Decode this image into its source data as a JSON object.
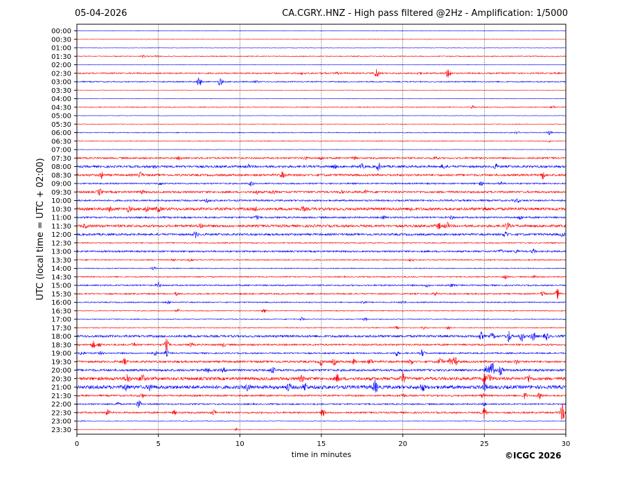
{
  "header": {
    "date": "05-04-2026",
    "title": "CA.CGRY..HNZ - High pass filtered @2Hz - Amplification: 1/5000"
  },
  "footer": {
    "copyright": "©ICGC 2026"
  },
  "colors": {
    "red": "#ff0000",
    "blue": "#0000ff",
    "grid": "#000000",
    "axis": "#000000"
  },
  "chart_data": {
    "type": "line",
    "title": "CA.CGRY..HNZ - High pass filtered @2Hz - Amplification: 1/5000",
    "xlabel": "time in minutes",
    "ylabel": "UTC (local time = UTC + 02:00)",
    "xlim": [
      0,
      30
    ],
    "xticks": [
      "0",
      "5",
      "10",
      "15",
      "20",
      "25",
      "30"
    ],
    "xgrid": [
      5,
      10,
      15,
      20,
      25
    ],
    "grid": "vertical dotted",
    "row_labels": [
      "00:00",
      "00:30",
      "01:00",
      "01:30",
      "02:00",
      "02:30",
      "03:00",
      "03:30",
      "04:00",
      "04:30",
      "05:00",
      "05:30",
      "06:00",
      "06:30",
      "07:00",
      "07:30",
      "08:00",
      "08:30",
      "09:00",
      "09:30",
      "10:00",
      "10:30",
      "11:00",
      "11:30",
      "12:00",
      "12:30",
      "13:00",
      "13:30",
      "14:00",
      "14:30",
      "15:00",
      "15:30",
      "16:00",
      "16:30",
      "17:00",
      "17:30",
      "18:00",
      "18:30",
      "19:00",
      "19:30",
      "20:00",
      "20:30",
      "21:00",
      "21:30",
      "22:00",
      "22:30",
      "23:00",
      "23:30"
    ],
    "row_colors": [
      "blue",
      "red"
    ],
    "noise_amplitude": [
      0.3,
      0.3,
      0.3,
      0.6,
      0.3,
      1.0,
      0.8,
      0.3,
      0.3,
      0.6,
      0.3,
      0.4,
      0.6,
      0.5,
      0.3,
      1.2,
      1.6,
      1.5,
      1.0,
      1.4,
      1.2,
      2.0,
      1.2,
      1.8,
      1.5,
      0.8,
      1.2,
      0.8,
      0.6,
      0.8,
      1.0,
      1.0,
      0.8,
      0.6,
      0.6,
      0.6,
      1.6,
      1.2,
      1.0,
      1.5,
      1.6,
      2.2,
      2.5,
      1.2,
      1.0,
      1.2,
      0.4,
      0.3
    ],
    "events": [
      {
        "row": 3,
        "x": 4.1,
        "amp": 1.5
      },
      {
        "row": 3,
        "x": 4.9,
        "amp": 1.2
      },
      {
        "row": 5,
        "x": 13.8,
        "amp": 1.2
      },
      {
        "row": 5,
        "x": 15.1,
        "amp": 1.4
      },
      {
        "row": 5,
        "x": 16.0,
        "amp": 1.6
      },
      {
        "row": 5,
        "x": 18.4,
        "amp": 7.0
      },
      {
        "row": 5,
        "x": 21.0,
        "amp": 1.5
      },
      {
        "row": 5,
        "x": 22.8,
        "amp": 9.0
      },
      {
        "row": 6,
        "x": 7.5,
        "amp": 7.0
      },
      {
        "row": 6,
        "x": 8.8,
        "amp": 6.0
      },
      {
        "row": 6,
        "x": 11.0,
        "amp": 2.0
      },
      {
        "row": 9,
        "x": 24.3,
        "amp": 2.0
      },
      {
        "row": 9,
        "x": 29.2,
        "amp": 2.0
      },
      {
        "row": 12,
        "x": 27.0,
        "amp": 1.5
      },
      {
        "row": 12,
        "x": 29.0,
        "amp": 3.0
      },
      {
        "row": 13,
        "x": 29.0,
        "amp": 2.0
      },
      {
        "row": 15,
        "x": 6.3,
        "amp": 2.5
      },
      {
        "row": 15,
        "x": 14.0,
        "amp": 2.0
      },
      {
        "row": 15,
        "x": 15.0,
        "amp": 2.0
      },
      {
        "row": 15,
        "x": 17.0,
        "amp": 2.0
      },
      {
        "row": 15,
        "x": 22.0,
        "amp": 2.5
      },
      {
        "row": 16,
        "x": 4.8,
        "amp": 2.5
      },
      {
        "row": 16,
        "x": 10.5,
        "amp": 2.0
      },
      {
        "row": 16,
        "x": 15.8,
        "amp": 2.5
      },
      {
        "row": 16,
        "x": 17.5,
        "amp": 3.0
      },
      {
        "row": 16,
        "x": 18.5,
        "amp": 5.0
      },
      {
        "row": 16,
        "x": 22.5,
        "amp": 3.0
      },
      {
        "row": 16,
        "x": 25.7,
        "amp": 3.0
      },
      {
        "row": 17,
        "x": 1.5,
        "amp": 4.0
      },
      {
        "row": 17,
        "x": 3.9,
        "amp": 4.0
      },
      {
        "row": 17,
        "x": 12.6,
        "amp": 4.0
      },
      {
        "row": 17,
        "x": 28.6,
        "amp": 5.0
      },
      {
        "row": 18,
        "x": 5.1,
        "amp": 2.0
      },
      {
        "row": 18,
        "x": 10.7,
        "amp": 3.0
      },
      {
        "row": 18,
        "x": 24.8,
        "amp": 2.5
      },
      {
        "row": 18,
        "x": 26.0,
        "amp": 2.5
      },
      {
        "row": 19,
        "x": 1.4,
        "amp": 4.5
      },
      {
        "row": 19,
        "x": 4.0,
        "amp": 2.0
      },
      {
        "row": 19,
        "x": 11.0,
        "amp": 3.0
      },
      {
        "row": 19,
        "x": 12.0,
        "amp": 3.0
      },
      {
        "row": 19,
        "x": 16.2,
        "amp": 2.0
      },
      {
        "row": 19,
        "x": 17.7,
        "amp": 2.0
      },
      {
        "row": 20,
        "x": 8.0,
        "amp": 2.0
      },
      {
        "row": 20,
        "x": 27.0,
        "amp": 3.0
      },
      {
        "row": 21,
        "x": 2.0,
        "amp": 3.0
      },
      {
        "row": 21,
        "x": 3.2,
        "amp": 4.0
      },
      {
        "row": 21,
        "x": 4.3,
        "amp": 3.5
      },
      {
        "row": 21,
        "x": 5.0,
        "amp": 4.0
      },
      {
        "row": 21,
        "x": 11.0,
        "amp": 2.5
      },
      {
        "row": 21,
        "x": 13.9,
        "amp": 2.5
      },
      {
        "row": 21,
        "x": 20.5,
        "amp": 2.5
      },
      {
        "row": 21,
        "x": 25.0,
        "amp": 2.5
      },
      {
        "row": 22,
        "x": 11.0,
        "amp": 2.5
      },
      {
        "row": 22,
        "x": 18.8,
        "amp": 2.5
      },
      {
        "row": 22,
        "x": 23.0,
        "amp": 2.5
      },
      {
        "row": 22,
        "x": 27.2,
        "amp": 3.0
      },
      {
        "row": 23,
        "x": 0.5,
        "amp": 2.5
      },
      {
        "row": 23,
        "x": 7.6,
        "amp": 3.5
      },
      {
        "row": 23,
        "x": 22.2,
        "amp": 4.0
      },
      {
        "row": 23,
        "x": 22.7,
        "amp": 4.5
      },
      {
        "row": 23,
        "x": 26.4,
        "amp": 5.0
      },
      {
        "row": 24,
        "x": 7.3,
        "amp": 4.0
      },
      {
        "row": 24,
        "x": 26.3,
        "amp": 4.5
      },
      {
        "row": 24,
        "x": 29.8,
        "amp": 2.5
      },
      {
        "row": 26,
        "x": 26.0,
        "amp": 2.0
      },
      {
        "row": 26,
        "x": 27.0,
        "amp": 2.5
      },
      {
        "row": 26,
        "x": 28.0,
        "amp": 3.0
      },
      {
        "row": 27,
        "x": 5.9,
        "amp": 2.0
      },
      {
        "row": 27,
        "x": 7.0,
        "amp": 2.0
      },
      {
        "row": 27,
        "x": 20.5,
        "amp": 2.0
      },
      {
        "row": 28,
        "x": 4.7,
        "amp": 2.0
      },
      {
        "row": 29,
        "x": 26.3,
        "amp": 3.0
      },
      {
        "row": 29,
        "x": 28.1,
        "amp": 2.5
      },
      {
        "row": 30,
        "x": 5.0,
        "amp": 4.0
      },
      {
        "row": 30,
        "x": 21.5,
        "amp": 2.0
      },
      {
        "row": 30,
        "x": 23.0,
        "amp": 2.0
      },
      {
        "row": 31,
        "x": 6.1,
        "amp": 2.0
      },
      {
        "row": 31,
        "x": 22.0,
        "amp": 2.0
      },
      {
        "row": 31,
        "x": 28.6,
        "amp": 4.0
      },
      {
        "row": 31,
        "x": 29.5,
        "amp": 7.0
      },
      {
        "row": 32,
        "x": 5.6,
        "amp": 2.0
      },
      {
        "row": 32,
        "x": 17.6,
        "amp": 3.0
      },
      {
        "row": 32,
        "x": 20.0,
        "amp": 2.0
      },
      {
        "row": 33,
        "x": 6.2,
        "amp": 2.0
      },
      {
        "row": 33,
        "x": 11.5,
        "amp": 2.5
      },
      {
        "row": 34,
        "x": 13.8,
        "amp": 2.5
      },
      {
        "row": 34,
        "x": 17.7,
        "amp": 2.0
      },
      {
        "row": 35,
        "x": 19.6,
        "amp": 2.0
      },
      {
        "row": 35,
        "x": 21.3,
        "amp": 2.0
      },
      {
        "row": 35,
        "x": 22.8,
        "amp": 2.0
      },
      {
        "row": 36,
        "x": 24.8,
        "amp": 5.0
      },
      {
        "row": 36,
        "x": 25.5,
        "amp": 4.0
      },
      {
        "row": 36,
        "x": 26.5,
        "amp": 8.0
      },
      {
        "row": 36,
        "x": 27.3,
        "amp": 7.0
      },
      {
        "row": 36,
        "x": 28.0,
        "amp": 6.0
      },
      {
        "row": 36,
        "x": 28.8,
        "amp": 5.0
      },
      {
        "row": 37,
        "x": 1.0,
        "amp": 5.0
      },
      {
        "row": 37,
        "x": 1.4,
        "amp": 3.0
      },
      {
        "row": 37,
        "x": 3.5,
        "amp": 2.5
      },
      {
        "row": 37,
        "x": 5.5,
        "amp": 8.0
      },
      {
        "row": 37,
        "x": 7.0,
        "amp": 2.5
      },
      {
        "row": 37,
        "x": 9.0,
        "amp": 2.5
      },
      {
        "row": 38,
        "x": 0.3,
        "amp": 3.0
      },
      {
        "row": 38,
        "x": 1.5,
        "amp": 2.0
      },
      {
        "row": 38,
        "x": 4.8,
        "amp": 3.0
      },
      {
        "row": 38,
        "x": 5.5,
        "amp": 4.0
      },
      {
        "row": 38,
        "x": 19.6,
        "amp": 4.0
      },
      {
        "row": 38,
        "x": 21.2,
        "amp": 5.0
      },
      {
        "row": 39,
        "x": 2.9,
        "amp": 4.0
      },
      {
        "row": 39,
        "x": 15.0,
        "amp": 5.0
      },
      {
        "row": 39,
        "x": 15.8,
        "amp": 4.0
      },
      {
        "row": 39,
        "x": 17.0,
        "amp": 3.5
      },
      {
        "row": 39,
        "x": 18.0,
        "amp": 3.5
      },
      {
        "row": 39,
        "x": 20.5,
        "amp": 3.5
      },
      {
        "row": 39,
        "x": 22.3,
        "amp": 5.0
      },
      {
        "row": 39,
        "x": 22.9,
        "amp": 4.0
      },
      {
        "row": 39,
        "x": 23.2,
        "amp": 7.0
      },
      {
        "row": 39,
        "x": 27.0,
        "amp": 3.0
      },
      {
        "row": 40,
        "x": 8.0,
        "amp": 3.0
      },
      {
        "row": 40,
        "x": 9.0,
        "amp": 2.5
      },
      {
        "row": 40,
        "x": 12.0,
        "amp": 4.0
      },
      {
        "row": 40,
        "x": 25.2,
        "amp": 10.0
      },
      {
        "row": 40,
        "x": 25.5,
        "amp": 12.0
      },
      {
        "row": 40,
        "x": 26.0,
        "amp": 6.0
      },
      {
        "row": 41,
        "x": 3.1,
        "amp": 6.0
      },
      {
        "row": 41,
        "x": 4.0,
        "amp": 6.5
      },
      {
        "row": 41,
        "x": 13.8,
        "amp": 4.0
      },
      {
        "row": 41,
        "x": 16.0,
        "amp": 5.0
      },
      {
        "row": 41,
        "x": 20.0,
        "amp": 8.0
      },
      {
        "row": 41,
        "x": 25.0,
        "amp": 6.0
      },
      {
        "row": 41,
        "x": 25.3,
        "amp": 7.0
      },
      {
        "row": 41,
        "x": 27.7,
        "amp": 5.0
      },
      {
        "row": 42,
        "x": 3.0,
        "amp": 4.0
      },
      {
        "row": 42,
        "x": 4.5,
        "amp": 4.0
      },
      {
        "row": 42,
        "x": 10.5,
        "amp": 5.0
      },
      {
        "row": 42,
        "x": 13.0,
        "amp": 5.0
      },
      {
        "row": 42,
        "x": 14.0,
        "amp": 5.0
      },
      {
        "row": 42,
        "x": 18.3,
        "amp": 9.0
      },
      {
        "row": 42,
        "x": 21.2,
        "amp": 5.0
      },
      {
        "row": 42,
        "x": 25.0,
        "amp": 5.0
      },
      {
        "row": 43,
        "x": 4.0,
        "amp": 3.0
      },
      {
        "row": 43,
        "x": 20.0,
        "amp": 3.0
      },
      {
        "row": 43,
        "x": 24.9,
        "amp": 3.0
      },
      {
        "row": 43,
        "x": 27.5,
        "amp": 4.0
      },
      {
        "row": 43,
        "x": 28.4,
        "amp": 4.0
      },
      {
        "row": 44,
        "x": 2.5,
        "amp": 2.5
      },
      {
        "row": 44,
        "x": 3.8,
        "amp": 6.0
      },
      {
        "row": 44,
        "x": 25.0,
        "amp": 2.0
      },
      {
        "row": 45,
        "x": 1.9,
        "amp": 4.0
      },
      {
        "row": 45,
        "x": 6.0,
        "amp": 3.0
      },
      {
        "row": 45,
        "x": 8.4,
        "amp": 4.0
      },
      {
        "row": 45,
        "x": 15.1,
        "amp": 5.0
      },
      {
        "row": 45,
        "x": 25.0,
        "amp": 9.0
      },
      {
        "row": 45,
        "x": 29.8,
        "amp": 12.0
      },
      {
        "row": 46,
        "x": 0.3,
        "amp": 1.5
      },
      {
        "row": 47,
        "x": 9.8,
        "amp": 2.0
      }
    ]
  }
}
